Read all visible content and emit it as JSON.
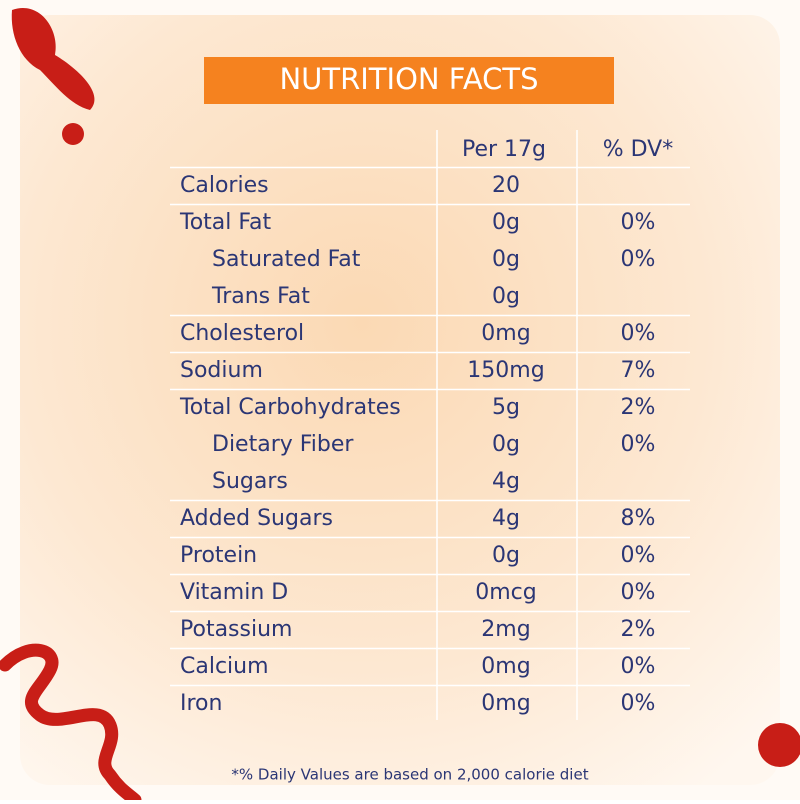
{
  "header": {
    "title": "NUTRITION FACTS"
  },
  "table": {
    "columns": [
      "Per 17g",
      "% DV*"
    ],
    "rows": [
      {
        "name": "Calories",
        "amount": "20"
      },
      {
        "name": "Total Fat",
        "amount": "0g",
        "dv": "0%",
        "subrows": [
          {
            "name": "Saturated Fat",
            "amount": "0g",
            "dv": "0%"
          },
          {
            "name": "Trans Fat",
            "amount": "0g"
          }
        ]
      },
      {
        "name": "Cholesterol",
        "amount": "0mg",
        "dv": "0%"
      },
      {
        "name": "Sodium",
        "amount": "150mg",
        "dv": "7%"
      },
      {
        "name": "Total Carbohydrates",
        "amount": "5g",
        "dv": "2%",
        "subrows": [
          {
            "name": "Dietary Fiber",
            "amount": "0g",
            "dv": "0%"
          },
          {
            "name": "Sugars",
            "amount": "4g"
          }
        ]
      },
      {
        "name": "Added Sugars",
        "amount": "4g",
        "dv": "8%"
      },
      {
        "name": "Protein",
        "amount": "0g",
        "dv": "0%"
      },
      {
        "name": "Vitamin D",
        "amount": "0mcg",
        "dv": "0%"
      },
      {
        "name": "Potassium",
        "amount": "2mg",
        "dv": "2%"
      },
      {
        "name": "Calcium",
        "amount": "0mg",
        "dv": "0%"
      },
      {
        "name": "Iron",
        "amount": "0mg",
        "dv": "0%"
      }
    ]
  },
  "footnote": "*% Daily Values are based on 2,000 calorie diet"
}
